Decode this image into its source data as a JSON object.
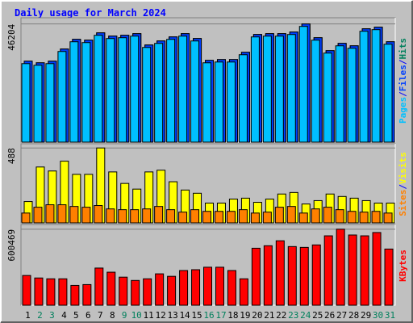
{
  "chart_data": [
    {
      "type": "bar",
      "title": "Daily usage for March 2024",
      "ylim": [
        0,
        48000
      ],
      "yticks": [
        46204
      ],
      "legend_separator": "/",
      "series": [
        {
          "name": "Pages",
          "color": "#00c0ff",
          "values": [
            30700,
            30070,
            30700,
            35450,
            39250,
            38930,
            41780,
            40510,
            40830,
            41460,
            37030,
            38610,
            40190,
            41460,
            39560,
            31020,
            31330,
            31330,
            34180,
            41140,
            41460,
            41460,
            42090,
            45250,
            39880,
            34820,
            37660,
            36710,
            43360,
            43990,
            38290
          ]
        },
        {
          "name": "Files",
          "color": "#0040ff",
          "values": [
            31650,
            31017,
            31650,
            36398,
            40196,
            39879,
            42728,
            41462,
            41778,
            42411,
            37980,
            39563,
            41145,
            42411,
            40512,
            31967,
            32283,
            32283,
            35132,
            42095,
            42411,
            42411,
            43044,
            46204,
            40829,
            35765,
            38613,
            37664,
            44310,
            44943,
            39246
          ]
        },
        {
          "name": "Hits",
          "color": "#00805c",
          "values": [
            31650,
            31017,
            31650,
            36398,
            40196,
            39879,
            42728,
            41462,
            41778,
            42411,
            37980,
            39563,
            41145,
            42411,
            40512,
            31967,
            32283,
            32283,
            35132,
            42095,
            42411,
            42411,
            43044,
            46204,
            40829,
            35765,
            38613,
            37664,
            44310,
            44943,
            39246
          ]
        }
      ]
    },
    {
      "type": "bar",
      "ylim": [
        0,
        505
      ],
      "yticks": [
        488
      ],
      "legend_separator": "/",
      "series": [
        {
          "name": "Sites",
          "color": "#ff8000",
          "values": [
            64,
            102,
            118,
            118,
            107,
            102,
            113,
            91,
            86,
            86,
            91,
            107,
            86,
            70,
            86,
            75,
            75,
            75,
            86,
            64,
            70,
            102,
            107,
            64,
            91,
            102,
            86,
            75,
            70,
            75,
            64
          ]
        },
        {
          "name": "Visits",
          "color": "#ffff00",
          "values": [
            139,
            364,
            338,
            402,
            316,
            316,
            488,
            332,
            257,
            220,
            332,
            343,
            268,
            214,
            193,
            129,
            129,
            155,
            161,
            134,
            155,
            188,
            198,
            123,
            145,
            188,
            172,
            161,
            145,
            129,
            129
          ]
        }
      ]
    },
    {
      "type": "bar",
      "ylim": [
        0,
        625000
      ],
      "yticks": [
        600469
      ],
      "categories": [
        "1",
        "2",
        "3",
        "4",
        "5",
        "6",
        "7",
        "8",
        "9",
        "10",
        "11",
        "12",
        "13",
        "14",
        "15",
        "16",
        "17",
        "18",
        "19",
        "20",
        "21",
        "22",
        "23",
        "24",
        "25",
        "26",
        "27",
        "28",
        "29",
        "30",
        "31"
      ],
      "category_colors": [
        "#000000",
        "#00805c",
        "#00805c",
        "#000000",
        "#000000",
        "#000000",
        "#000000",
        "#000000",
        "#00805c",
        "#00805c",
        "#000000",
        "#000000",
        "#000000",
        "#000000",
        "#000000",
        "#00805c",
        "#00805c",
        "#000000",
        "#000000",
        "#000000",
        "#000000",
        "#000000",
        "#00805c",
        "#00805c",
        "#000000",
        "#000000",
        "#000000",
        "#000000",
        "#000000",
        "#00805c",
        "#00805c"
      ],
      "series": [
        {
          "name": "KBytes",
          "color": "#ff0000",
          "values": [
            234970,
            215390,
            208860,
            208860,
            156650,
            163180,
            293720,
            261080,
            221920,
            195810,
            208860,
            248030,
            228450,
            274130,
            280660,
            300240,
            300240,
            274130,
            208860,
            450360,
            469940,
            509110,
            463420,
            456890,
            476470,
            548270,
            600469,
            554800,
            548270,
            574380,
            443840
          ]
        }
      ]
    }
  ]
}
